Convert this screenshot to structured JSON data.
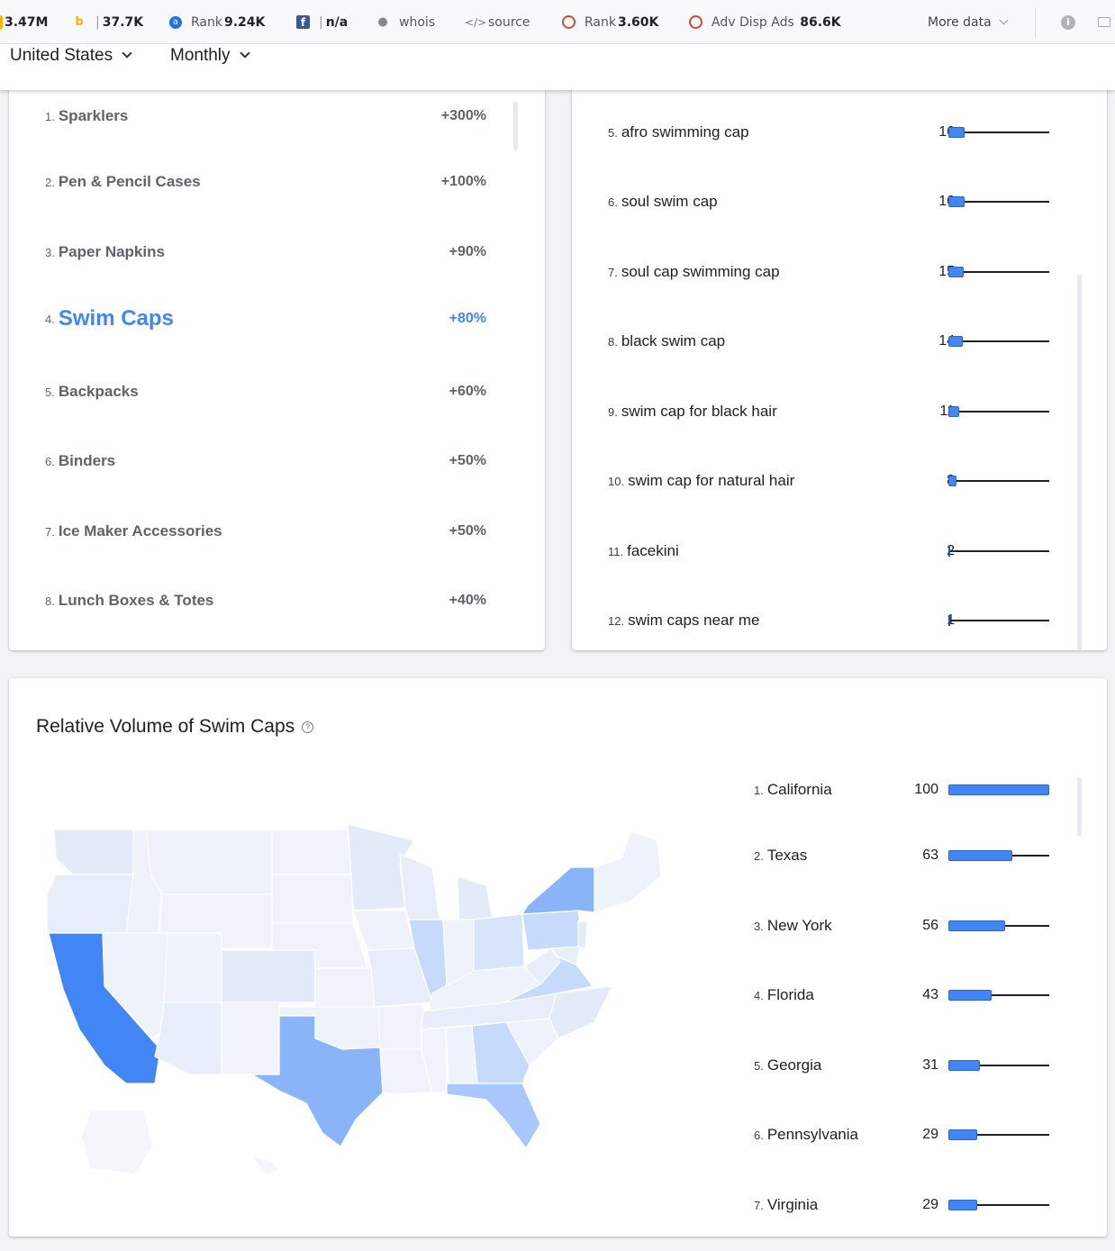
{
  "toolbar": {
    "items": [
      {
        "icon": "partial-icon",
        "label": "",
        "value": "3.47M"
      },
      {
        "icon": "bing-icon",
        "label": "",
        "value": "37.7K"
      },
      {
        "icon": "alexa-icon",
        "label": "Rank",
        "value": "9.24K"
      },
      {
        "icon": "facebook-icon",
        "label": "",
        "value": "n/a"
      },
      {
        "icon": "person-icon",
        "label": "whois",
        "value": ""
      },
      {
        "icon": "code-icon",
        "label": "source",
        "value": ""
      },
      {
        "icon": "ring-icon",
        "label": "Rank",
        "value": "3.60K"
      },
      {
        "icon": "ring-icon",
        "label": "Adv Disp Ads",
        "value": "86.6K"
      }
    ],
    "more_data": "More data"
  },
  "filters": {
    "region": "United States",
    "period": "Monthly"
  },
  "rising_categories": {
    "items": [
      {
        "rank": "1.",
        "name": "Sparklers",
        "change": "+300%"
      },
      {
        "rank": "2.",
        "name": "Pen & Pencil Cases",
        "change": "+100%"
      },
      {
        "rank": "3.",
        "name": "Paper Napkins",
        "change": "+90%"
      },
      {
        "rank": "4.",
        "name": "Swim Caps",
        "change": "+80%"
      },
      {
        "rank": "5.",
        "name": "Backpacks",
        "change": "+60%"
      },
      {
        "rank": "6.",
        "name": "Binders",
        "change": "+50%"
      },
      {
        "rank": "7.",
        "name": "Ice Maker Accessories",
        "change": "+50%"
      },
      {
        "rank": "8.",
        "name": "Lunch Boxes & Totes",
        "change": "+40%"
      }
    ],
    "active_index": 3
  },
  "top_searches": {
    "items": [
      {
        "rank": "5.",
        "term": "afro swimming cap",
        "score": 16
      },
      {
        "rank": "6.",
        "term": "soul swim cap",
        "score": 16
      },
      {
        "rank": "7.",
        "term": "soul cap swimming cap",
        "score": 15
      },
      {
        "rank": "8.",
        "term": "black swim cap",
        "score": 14
      },
      {
        "rank": "9.",
        "term": "swim cap for black hair",
        "score": 11
      },
      {
        "rank": "10.",
        "term": "swim cap for natural hair",
        "score": 8
      },
      {
        "rank": "11.",
        "term": "facekini",
        "score": 2
      },
      {
        "rank": "12.",
        "term": "swim caps near me",
        "score": 1
      }
    ]
  },
  "relative_volume": {
    "title": "Relative Volume of Swim Caps",
    "regions": [
      {
        "rank": "1.",
        "name": "California",
        "score": 100
      },
      {
        "rank": "2.",
        "name": "Texas",
        "score": 63
      },
      {
        "rank": "3.",
        "name": "New York",
        "score": 56
      },
      {
        "rank": "4.",
        "name": "Florida",
        "score": 43
      },
      {
        "rank": "5.",
        "name": "Georgia",
        "score": 31
      },
      {
        "rank": "6.",
        "name": "Pennsylvania",
        "score": 29
      },
      {
        "rank": "7.",
        "name": "Virginia",
        "score": 29
      }
    ],
    "colors": {
      "high": "#4285f4",
      "mid": "#8ab4f8",
      "low": "#c6dafc",
      "base": "#eef2fb"
    }
  }
}
